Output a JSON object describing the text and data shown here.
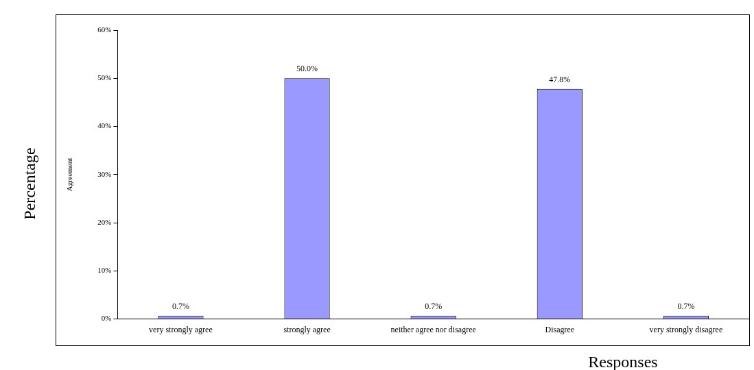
{
  "chart_data": {
    "type": "bar",
    "xlabel": "Responses",
    "ylabel": "Agreement",
    "annotations": [
      "Percentage"
    ],
    "categories": [
      "very strongly agree",
      "strongly agree",
      "neither agree nor disagree",
      "Disagree",
      "very strongly disagree"
    ],
    "values": [
      0.7,
      50.0,
      0.7,
      47.8,
      0.7
    ],
    "value_labels": [
      "0.7%",
      "50.0%",
      "0.7%",
      "47.8%",
      "0.7%"
    ],
    "color": "#9999ff",
    "ylim": [
      0,
      60
    ],
    "yticks": [
      {
        "value": 0,
        "label": "0%"
      },
      {
        "value": 10,
        "label": "10%"
      },
      {
        "value": 20,
        "label": "20%"
      },
      {
        "value": 30,
        "label": "30%"
      },
      {
        "value": 40,
        "label": "40%"
      },
      {
        "value": 50,
        "label": "50%"
      },
      {
        "value": 60,
        "label": "60%"
      }
    ],
    "grid": false,
    "legend": false
  }
}
